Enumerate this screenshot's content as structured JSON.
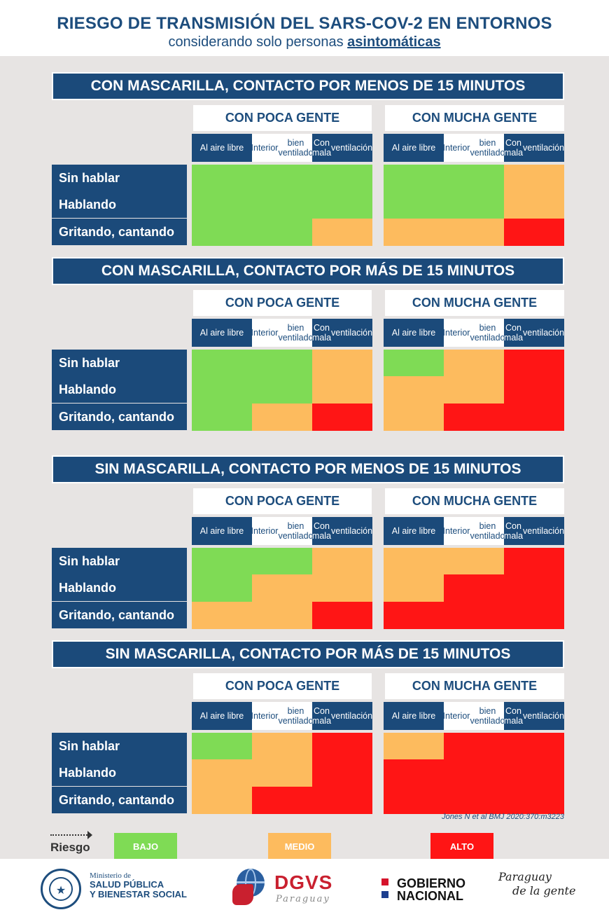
{
  "header": {
    "title": "RIESGO DE TRANSMISIÓN DEL SARS-COV-2 EN ENTORNOS",
    "subtitle_prefix": "considerando solo personas ",
    "subtitle_emphasis": "asintomáticas"
  },
  "groups": [
    "CON POCA GENTE",
    "CON MUCHA GENTE"
  ],
  "columns": [
    {
      "l1": "Al aire libre",
      "l2": ""
    },
    {
      "l1": "Interior",
      "l2": "bien ventilado"
    },
    {
      "l1": "Con mala",
      "l2": "ventilación"
    }
  ],
  "rows": [
    "Sin hablar",
    "Hablando",
    "Gritando, cantando"
  ],
  "sections": [
    {
      "title": "CON MASCARILLA, CONTACTO POR MENOS DE 15 MINUTOS",
      "poca": [
        [
          "bajo",
          "bajo",
          "bajo"
        ],
        [
          "bajo",
          "bajo",
          "bajo"
        ],
        [
          "bajo",
          "bajo",
          "medio"
        ]
      ],
      "mucha": [
        [
          "bajo",
          "bajo",
          "medio"
        ],
        [
          "bajo",
          "bajo",
          "medio"
        ],
        [
          "medio",
          "medio",
          "alto"
        ]
      ]
    },
    {
      "title": "CON MASCARILLA, CONTACTO POR MÁS DE 15 MINUTOS",
      "poca": [
        [
          "bajo",
          "bajo",
          "medio"
        ],
        [
          "bajo",
          "bajo",
          "medio"
        ],
        [
          "bajo",
          "medio",
          "alto"
        ]
      ],
      "mucha": [
        [
          "bajo",
          "medio",
          "alto"
        ],
        [
          "medio",
          "medio",
          "alto"
        ],
        [
          "medio",
          "alto",
          "alto"
        ]
      ]
    },
    {
      "title": "SIN MASCARILLA, CONTACTO POR MENOS DE 15 MINUTOS",
      "poca": [
        [
          "bajo",
          "bajo",
          "medio"
        ],
        [
          "bajo",
          "medio",
          "medio"
        ],
        [
          "medio",
          "medio",
          "alto"
        ]
      ],
      "mucha": [
        [
          "medio",
          "medio",
          "alto"
        ],
        [
          "medio",
          "alto",
          "alto"
        ],
        [
          "alto",
          "alto",
          "alto"
        ]
      ]
    },
    {
      "title": "SIN MASCARILLA, CONTACTO POR MÁS DE 15 MINUTOS",
      "poca": [
        [
          "bajo",
          "medio",
          "alto"
        ],
        [
          "medio",
          "medio",
          "alto"
        ],
        [
          "medio",
          "alto",
          "alto"
        ]
      ],
      "mucha": [
        [
          "medio",
          "alto",
          "alto"
        ],
        [
          "alto",
          "alto",
          "alto"
        ],
        [
          "alto",
          "alto",
          "alto"
        ]
      ]
    }
  ],
  "citation": "Jones N et al BMJ 2020:370:m3223",
  "legend": {
    "label": "Riesgo",
    "items": [
      {
        "key": "bajo",
        "label": "BAJO",
        "color": "#7fdb55"
      },
      {
        "key": "medio",
        "label": "MEDIO",
        "color": "#fdbb5e"
      },
      {
        "key": "alto",
        "label": "ALTO",
        "color": "#ff1515"
      }
    ]
  },
  "footer": {
    "ministry_l1": "Ministerio de",
    "ministry_l2": "SALUD PÚBLICA",
    "ministry_l3": "Y BIENESTAR SOCIAL",
    "dgvs": "DGVS",
    "dgvs_sub": "Paraguay",
    "gobierno_l1": "GOBIERNO",
    "gobierno_l2": "NACIONAL",
    "slogan_l1": "Paraguay",
    "slogan_l2": "de la gente"
  },
  "colors": {
    "primary": "#1b4a7a",
    "bajo": "#7fdb55",
    "medio": "#fdbb5e",
    "alto": "#ff1515"
  }
}
